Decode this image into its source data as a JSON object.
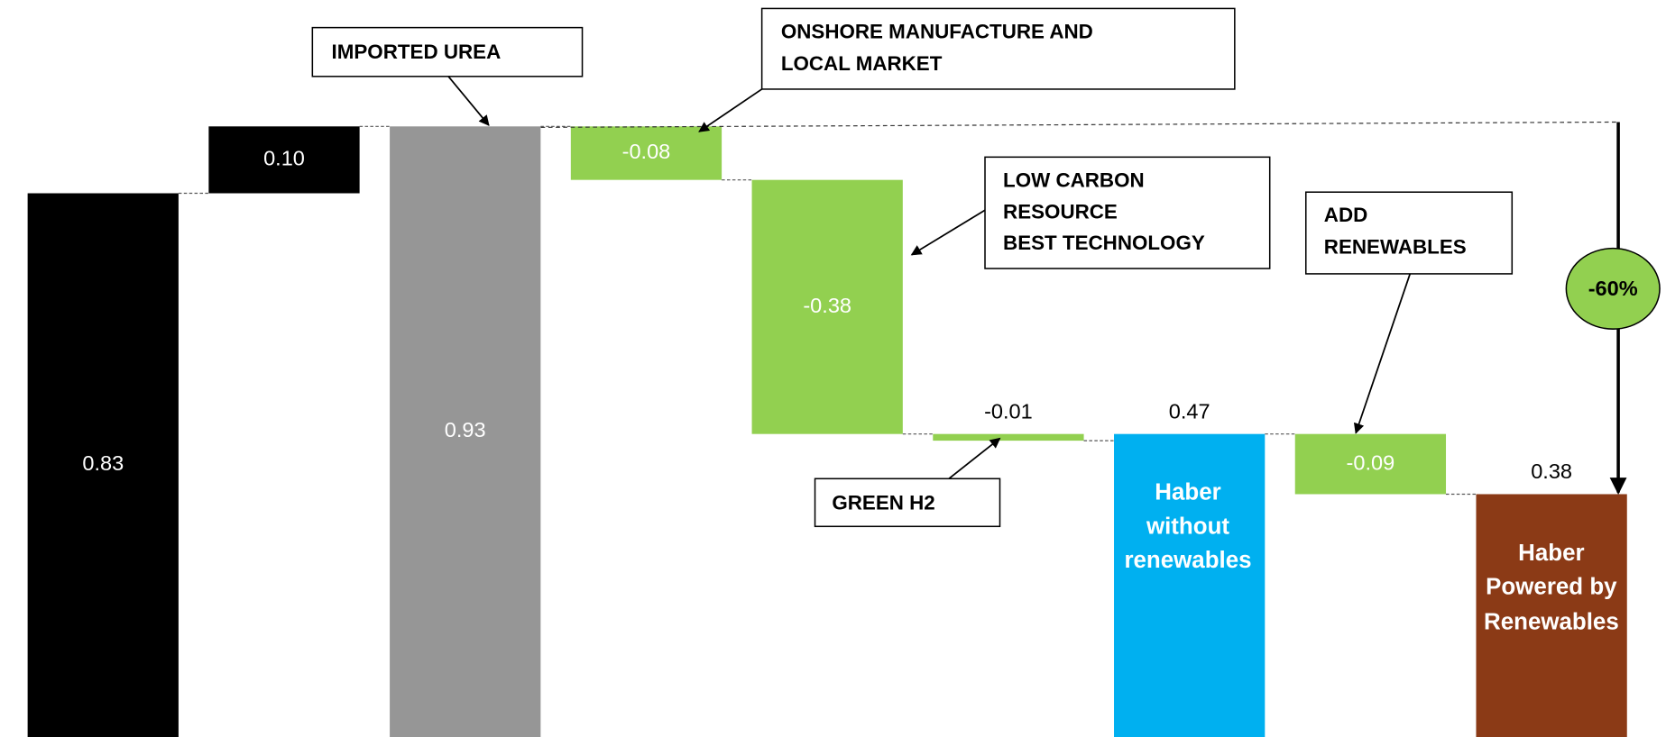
{
  "chart_data": {
    "type": "waterfall",
    "categories": [
      null,
      null,
      null,
      null,
      null,
      null,
      null,
      null,
      null
    ],
    "values": [
      0.83,
      0.1,
      0.93,
      -0.08,
      -0.38,
      -0.01,
      0.47,
      -0.09,
      0.38
    ],
    "value_labels": [
      "0.83",
      "0.10",
      "0.93",
      "-0.08",
      "-0.38",
      "-0.01",
      "0.47",
      "-0.09",
      "0.38"
    ],
    "measures": [
      "absolute",
      "relative",
      "absolute",
      "relative",
      "relative",
      "relative",
      "absolute",
      "relative",
      "absolute"
    ],
    "colors": [
      "#000000",
      "#000000",
      "#969696",
      "#92d050",
      "#92d050",
      "#92d050",
      "#00b0f0",
      "#92d050",
      "#8b3a16"
    ],
    "label_inside": [
      true,
      true,
      true,
      true,
      true,
      false,
      false,
      true,
      false
    ],
    "annotations": {
      "imported_urea": [
        "IMPORTED UREA"
      ],
      "onshore": [
        "ONSHORE MANUFACTURE AND",
        "LOCAL MARKET"
      ],
      "low_carbon": [
        "LOW CARBON",
        "RESOURCE",
        "BEST TECHNOLOGY"
      ],
      "add_renewables": [
        "ADD",
        "RENEWABLES"
      ],
      "green_h2": [
        "GREEN H2"
      ],
      "reduction": "-60%",
      "haber_without": [
        "Haber",
        "without",
        "renewables"
      ],
      "haber_powered": [
        "Haber",
        "Powered by",
        "Renewables"
      ]
    }
  }
}
